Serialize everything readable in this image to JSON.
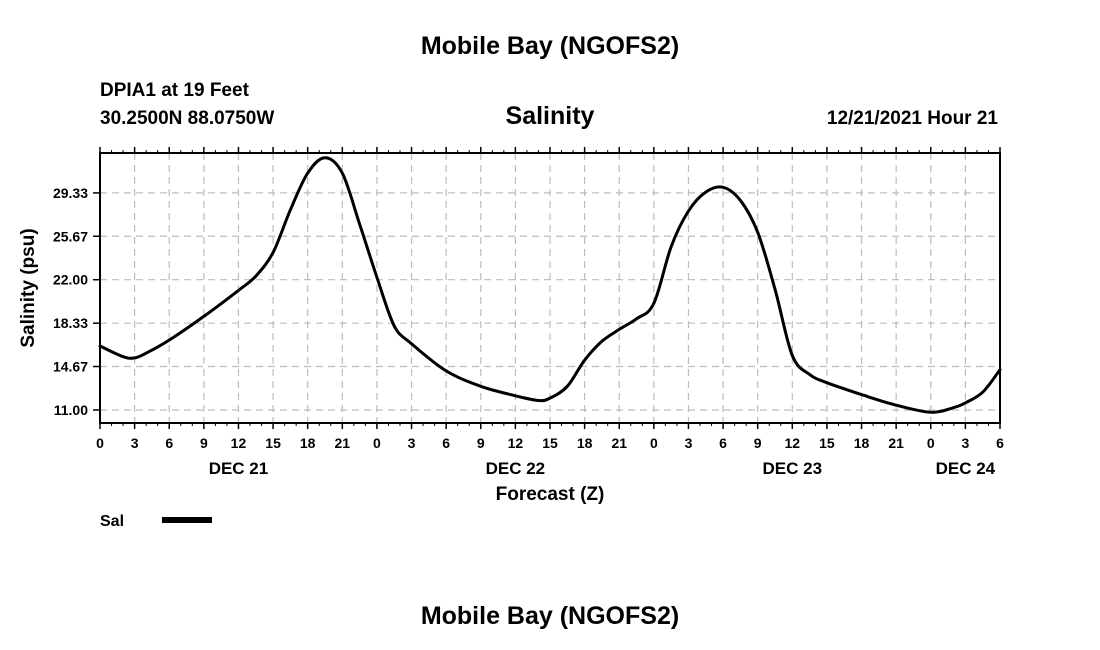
{
  "header": {
    "main_title": "Mobile Bay (NGOFS2)",
    "station": "DPIA1 at 19 Feet",
    "coords": "30.2500N  88.0750W",
    "timestamp": "12/21/2021 Hour 21"
  },
  "footer": {
    "title_repeat": "Mobile Bay (NGOFS2)"
  },
  "chart_data": {
    "type": "line",
    "title": "Salinity",
    "xlabel": "Forecast (Z)",
    "ylabel": "Salinity (psu)",
    "x_unit": "hours since DEC 21 00Z",
    "xlim": [
      0,
      78
    ],
    "ylim": [
      9.9,
      32.7
    ],
    "y_ticks": [
      "11.00",
      "14.67",
      "18.33",
      "22.00",
      "25.67",
      "29.33"
    ],
    "y_tick_values": [
      11.0,
      14.67,
      18.33,
      22.0,
      25.67,
      29.33
    ],
    "x_tick_labels": [
      "0",
      "3",
      "6",
      "9",
      "12",
      "15",
      "18",
      "21",
      "0",
      "3",
      "6",
      "9",
      "12",
      "15",
      "18",
      "21",
      "0",
      "3",
      "6",
      "9",
      "12",
      "15",
      "18",
      "21",
      "0",
      "3",
      "6"
    ],
    "x_tick_hours": [
      0,
      3,
      6,
      9,
      12,
      15,
      18,
      21,
      24,
      27,
      30,
      33,
      36,
      39,
      42,
      45,
      48,
      51,
      54,
      57,
      60,
      63,
      66,
      69,
      72,
      75,
      78
    ],
    "date_labels": [
      {
        "text": "DEC 21",
        "hour": 12
      },
      {
        "text": "DEC 22",
        "hour": 36
      },
      {
        "text": "DEC 23",
        "hour": 60
      },
      {
        "text": "DEC 24",
        "hour": 75
      }
    ],
    "grid": true,
    "legend": {
      "position": "bottom-left",
      "entries": [
        "Sal"
      ]
    },
    "series": [
      {
        "name": "Sal",
        "x": [
          0,
          2,
          3,
          4,
          6,
          9,
          12,
          13.5,
          15,
          16.5,
          18,
          19.5,
          21,
          22.5,
          24,
          25.5,
          27,
          30,
          33,
          36,
          38,
          39,
          40.5,
          42,
          43.5,
          45,
          46.5,
          48,
          49.5,
          51,
          52.5,
          54,
          55.5,
          57,
          58.5,
          60,
          61.5,
          63,
          66,
          69,
          72,
          74,
          75,
          76.5,
          78
        ],
        "y": [
          16.4,
          15.5,
          15.4,
          15.8,
          16.9,
          18.9,
          21.1,
          22.3,
          24.3,
          27.9,
          31.0,
          32.3,
          31.0,
          26.7,
          22.2,
          18.1,
          16.6,
          14.3,
          13.0,
          12.2,
          11.8,
          12.0,
          13.0,
          15.2,
          16.8,
          17.8,
          18.7,
          20.0,
          24.8,
          27.8,
          29.4,
          29.8,
          28.7,
          26.0,
          21.2,
          15.6,
          14.0,
          13.3,
          12.3,
          11.4,
          10.8,
          11.2,
          11.6,
          12.5,
          14.4
        ]
      }
    ]
  }
}
